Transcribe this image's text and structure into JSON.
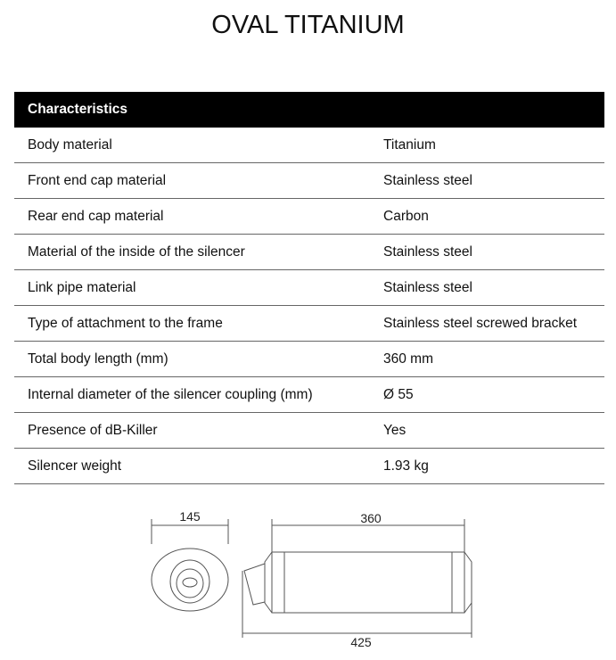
{
  "title": "OVAL TITANIUM",
  "table": {
    "header": "Characteristics",
    "rows": [
      {
        "label": "Body material",
        "value": "Titanium"
      },
      {
        "label": "Front end cap material",
        "value": "Stainless steel"
      },
      {
        "label": "Rear end cap material",
        "value": "Carbon"
      },
      {
        "label": "Material of the inside of the silencer",
        "value": "Stainless steel"
      },
      {
        "label": "Link pipe material",
        "value": "Stainless steel"
      },
      {
        "label": "Type of attachment to the frame",
        "value": "Stainless steel screwed bracket"
      },
      {
        "label": "Total body length (mm)",
        "value": "360 mm"
      },
      {
        "label": "Internal diameter of the silencer coupling (mm)",
        "value": "Ø 55"
      },
      {
        "label": "Presence of dB-Killer",
        "value": "Yes"
      },
      {
        "label": "Silencer weight",
        "value": "1.93 kg"
      }
    ]
  },
  "diagram": {
    "width_dim": "145",
    "body_dim": "360",
    "total_dim": "425"
  }
}
